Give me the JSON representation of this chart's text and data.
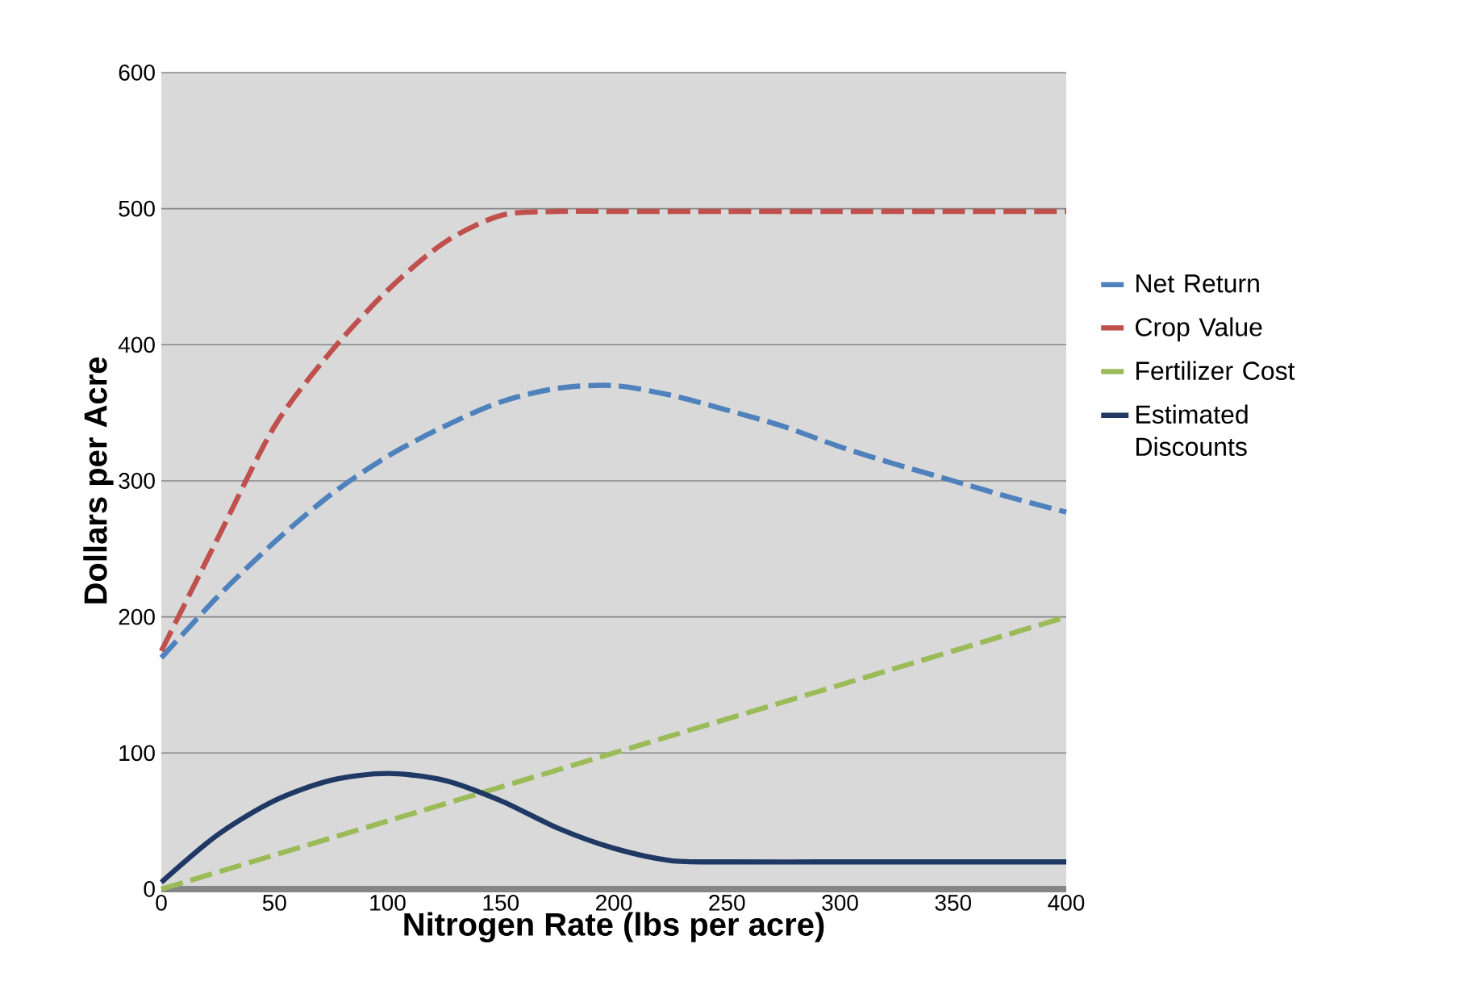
{
  "chart_data": {
    "type": "line",
    "xlabel": "Nitrogen Rate (lbs per acre)",
    "ylabel": "Dollars per Acre",
    "xlim": [
      0,
      400
    ],
    "xticks": [
      0,
      50,
      100,
      150,
      200,
      250,
      300,
      350,
      400
    ],
    "ylim": [
      0,
      600
    ],
    "yticks": [
      0,
      100,
      200,
      300,
      400,
      500,
      600
    ],
    "grid": "y",
    "legend": "right",
    "series": [
      {
        "name": "Net Return",
        "color": "#4f81bd",
        "line_style": "dashed",
        "x": [
          0,
          25,
          50,
          75,
          100,
          125,
          150,
          175,
          200,
          225,
          250,
          275,
          300,
          325,
          350,
          375,
          400
        ],
        "values": [
          170,
          215,
          255,
          290,
          318,
          340,
          358,
          368,
          370,
          363,
          352,
          340,
          325,
          312,
          300,
          288,
          277
        ]
      },
      {
        "name": "Crop Value",
        "color": "#c0504d",
        "line_style": "dashed",
        "x": [
          0,
          25,
          50,
          75,
          100,
          125,
          150,
          175,
          200,
          250,
          300,
          350,
          400
        ],
        "values": [
          175,
          258,
          340,
          395,
          440,
          475,
          495,
          498,
          498,
          498,
          498,
          498,
          498
        ]
      },
      {
        "name": "Fertilizer Cost",
        "color": "#9bbb59",
        "line_style": "dashed",
        "x": [
          0,
          100,
          200,
          300,
          400
        ],
        "values": [
          0,
          50,
          100,
          150,
          200
        ]
      },
      {
        "name": "Estimated Discounts",
        "color": "#1f3864",
        "line_style": "solid",
        "x": [
          0,
          25,
          50,
          75,
          100,
          125,
          150,
          175,
          200,
          225,
          250,
          300,
          350,
          400
        ],
        "values": [
          5,
          40,
          65,
          80,
          85,
          80,
          65,
          45,
          30,
          21,
          20,
          20,
          20,
          20
        ]
      }
    ]
  }
}
